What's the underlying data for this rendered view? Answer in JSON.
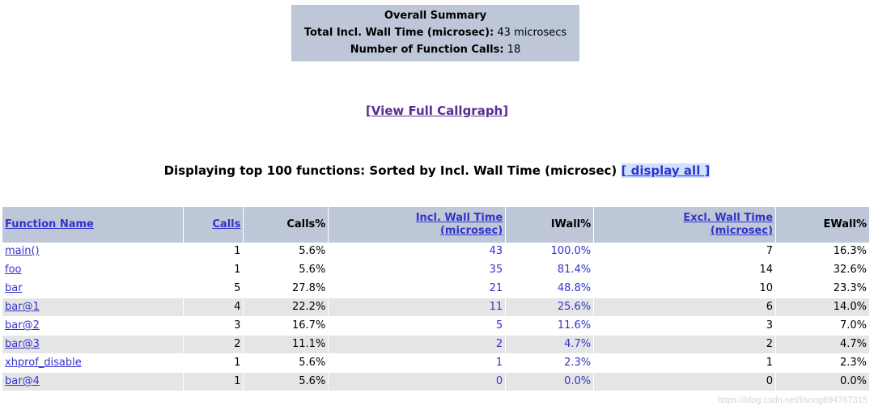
{
  "summary": {
    "title": "Overall Summary",
    "total_label": "Total Incl. Wall Time (microsec):",
    "total_value": "43 microsecs",
    "calls_label": "Number of Function Calls:",
    "calls_value": "18"
  },
  "callgraph_link": "[View Full Callgraph]",
  "heading": {
    "text": "Displaying top 100 functions: Sorted by Incl. Wall Time (microsec)",
    "display_all": "[ display all ]"
  },
  "columns": {
    "function_name": "Function Name",
    "calls": "Calls",
    "calls_pct": "Calls%",
    "incl_wall_1": "Incl. Wall Time",
    "incl_wall_2": "(microsec)",
    "iwall_pct": "IWall%",
    "excl_wall_1": "Excl. Wall Time",
    "excl_wall_2": "(microsec)",
    "ewall_pct": "EWall%"
  },
  "rows": [
    {
      "name": "main()",
      "calls": "1",
      "calls_pct": "5.6%",
      "incl": "43",
      "iwall": "100.0%",
      "excl": "7",
      "ewall": "16.3%"
    },
    {
      "name": "foo",
      "calls": "1",
      "calls_pct": "5.6%",
      "incl": "35",
      "iwall": "81.4%",
      "excl": "14",
      "ewall": "32.6%"
    },
    {
      "name": "bar",
      "calls": "5",
      "calls_pct": "27.8%",
      "incl": "21",
      "iwall": "48.8%",
      "excl": "10",
      "ewall": "23.3%"
    },
    {
      "name": "bar@1",
      "calls": "4",
      "calls_pct": "22.2%",
      "incl": "11",
      "iwall": "25.6%",
      "excl": "6",
      "ewall": "14.0%"
    },
    {
      "name": "bar@2",
      "calls": "3",
      "calls_pct": "16.7%",
      "incl": "5",
      "iwall": "11.6%",
      "excl": "3",
      "ewall": "7.0%"
    },
    {
      "name": "bar@3",
      "calls": "2",
      "calls_pct": "11.1%",
      "incl": "2",
      "iwall": "4.7%",
      "excl": "2",
      "ewall": "4.7%"
    },
    {
      "name": "xhprof_disable",
      "calls": "1",
      "calls_pct": "5.6%",
      "incl": "1",
      "iwall": "2.3%",
      "excl": "1",
      "ewall": "2.3%"
    },
    {
      "name": "bar@4",
      "calls": "1",
      "calls_pct": "5.6%",
      "incl": "0",
      "iwall": "0.0%",
      "excl": "0",
      "ewall": "0.0%"
    }
  ],
  "watermark": "https://blog.csdn.net/lisong694767315",
  "colors": {
    "header_bg": "#bdc7d8",
    "row_alt_bg": "#e5e5e5",
    "link": "#3333cc",
    "visited_link": "#5a2d91"
  }
}
